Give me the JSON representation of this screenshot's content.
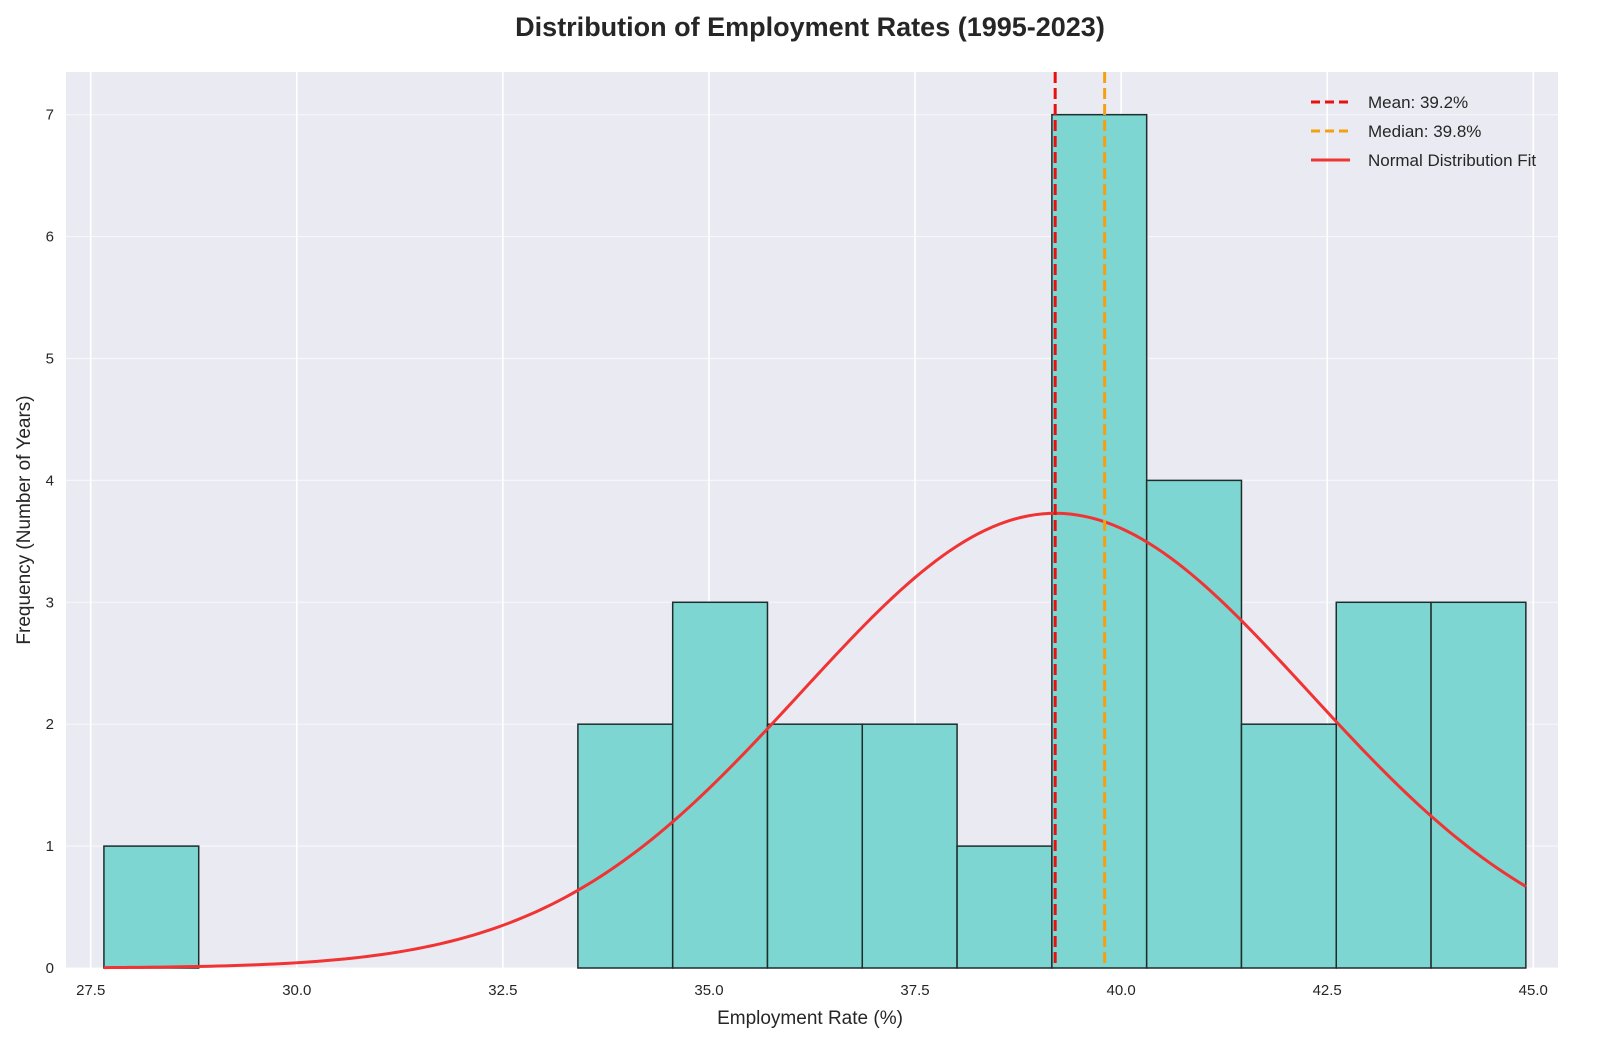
{
  "chart_data": {
    "type": "bar",
    "subtype": "histogram",
    "title": "Distribution of Employment Rates (1995-2023)",
    "xlabel": "Employment Rate (%)",
    "ylabel": "Frequency (Number of Years)",
    "xlim": [
      27.2,
      45.3
    ],
    "ylim": [
      0,
      7.35
    ],
    "xticks": [
      "27.5",
      "30.0",
      "32.5",
      "35.0",
      "37.5",
      "40.0",
      "42.5",
      "45.0"
    ],
    "xtick_values": [
      27.5,
      30.0,
      32.5,
      35.0,
      37.5,
      40.0,
      42.5,
      45.0
    ],
    "yticks": [
      "0",
      "1",
      "2",
      "3",
      "4",
      "5",
      "6",
      "7"
    ],
    "ytick_values": [
      0,
      1,
      2,
      3,
      4,
      5,
      6,
      7
    ],
    "grid": true,
    "legend_position": "top-right",
    "bins": [
      {
        "x0": 27.66,
        "x1": 28.81,
        "count": 1
      },
      {
        "x0": 28.81,
        "x1": 29.96,
        "count": 0
      },
      {
        "x0": 29.96,
        "x1": 31.11,
        "count": 0
      },
      {
        "x0": 31.11,
        "x1": 32.26,
        "count": 0
      },
      {
        "x0": 32.26,
        "x1": 33.41,
        "count": 0
      },
      {
        "x0": 33.41,
        "x1": 34.56,
        "count": 2
      },
      {
        "x0": 34.56,
        "x1": 35.71,
        "count": 3
      },
      {
        "x0": 35.71,
        "x1": 36.86,
        "count": 2
      },
      {
        "x0": 36.86,
        "x1": 38.01,
        "count": 2
      },
      {
        "x0": 38.01,
        "x1": 39.16,
        "count": 1
      },
      {
        "x0": 39.16,
        "x1": 40.31,
        "count": 7
      },
      {
        "x0": 40.31,
        "x1": 41.46,
        "count": 4
      },
      {
        "x0": 41.46,
        "x1": 42.61,
        "count": 2
      },
      {
        "x0": 42.61,
        "x1": 43.76,
        "count": 3
      },
      {
        "x0": 43.76,
        "x1": 44.91,
        "count": 3
      }
    ],
    "mean": 39.2,
    "median": 39.8,
    "normal_fit": {
      "mu": 39.2,
      "peak": 3.73,
      "sigma": 3.08,
      "x_range": [
        27.66,
        44.91
      ]
    },
    "legend": [
      {
        "label": "Mean: 39.2%",
        "style": "dashed",
        "color": "#e8110f"
      },
      {
        "label": "Median: 39.8%",
        "style": "dashed",
        "color": "#f5a00f"
      },
      {
        "label": "Normal Distribution Fit",
        "style": "solid",
        "color": "#f03434"
      }
    ],
    "colors": {
      "bar_fill": "#7dd6d1",
      "bar_edge": "#1f2d2d",
      "plot_background": "#eaeaf2",
      "grid": "#ffffff",
      "mean_line": "#e8110f",
      "median_line": "#f5a00f",
      "fit_line": "#f03434"
    }
  }
}
